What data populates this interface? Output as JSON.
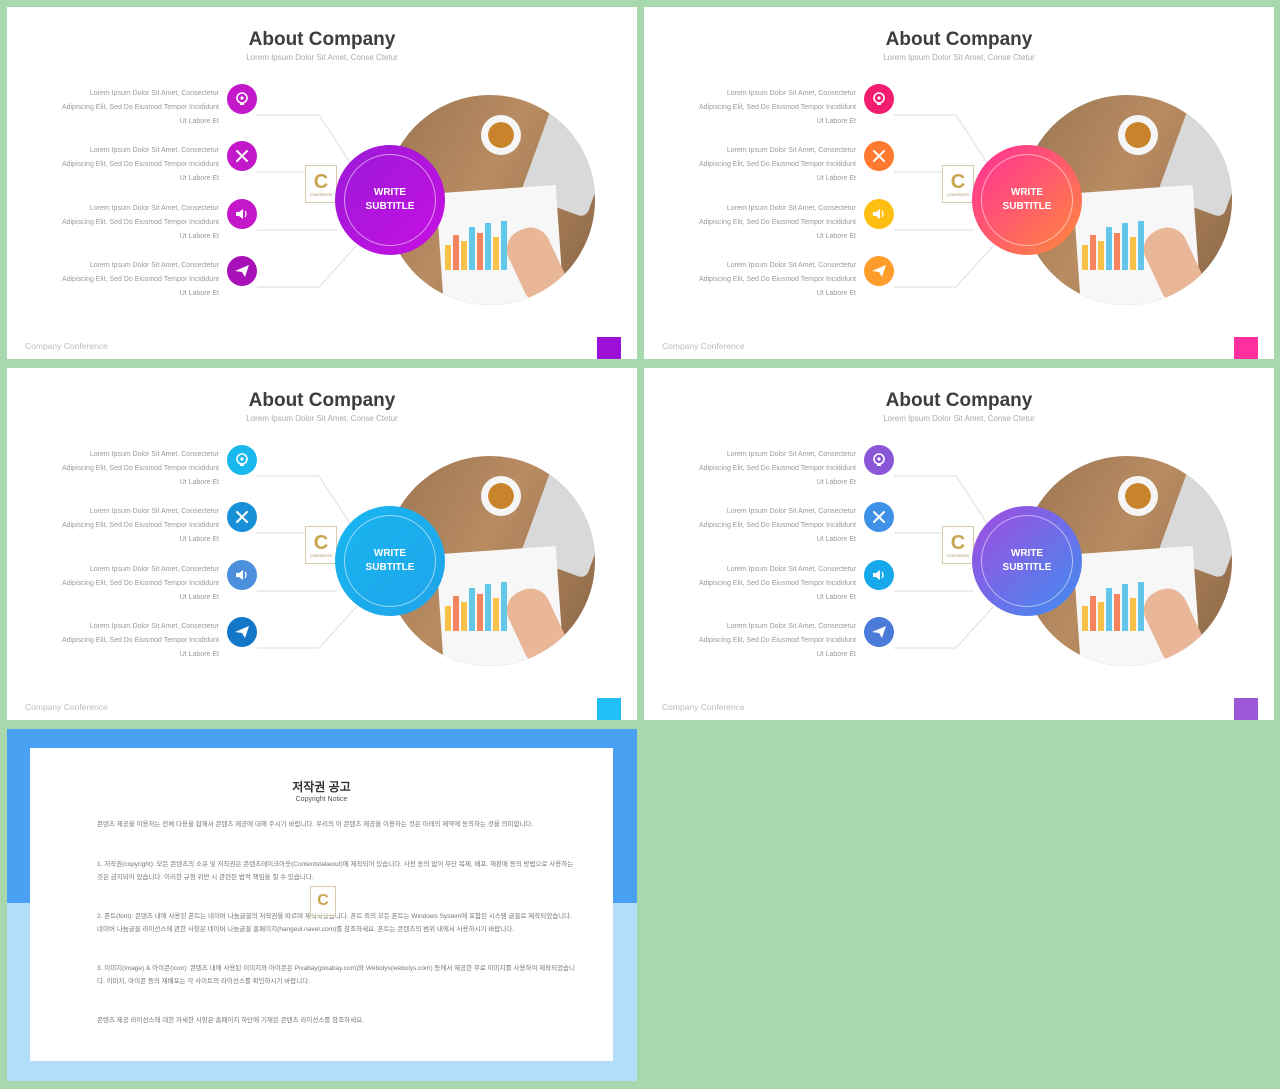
{
  "slides": [
    {
      "title": "About Company",
      "subtitle": "Lorem Ipsum Dolor Sit Amet, Conse Ctetur",
      "footer": "Company Conference",
      "center_label": "WRITE SUBTITLE",
      "center_gradient": [
        "#9b1bd6",
        "#c70fe3"
      ],
      "corner_color": "#9b10d4",
      "icon_colors": [
        "#c218c9",
        "#c218c9",
        "#c218c9",
        "#a911b8"
      ]
    },
    {
      "title": "About Company",
      "subtitle": "Lorem Ipsum Dolor Sit Amet, Conse Ctetur",
      "footer": "Company Conference",
      "center_label": "WRITE SUBTITLE",
      "center_gradient": [
        "#ff2e9a",
        "#ff8a3b"
      ],
      "corner_color": "#ff2fa0",
      "icon_colors": [
        "#f21d6f",
        "#ff7a2f",
        "#ffbf12",
        "#ff9d2a"
      ]
    },
    {
      "title": "About Company",
      "subtitle": "Lorem Ipsum Dolor Sit Amet, Conse Ctetur",
      "footer": "Company Conference",
      "center_label": "WRITE SUBTITLE",
      "center_gradient": [
        "#18b6f0",
        "#1fa4ea"
      ],
      "corner_color": "#1ec0f5",
      "icon_colors": [
        "#19b8ef",
        "#1890d7",
        "#4b8fdd",
        "#1376c6"
      ]
    },
    {
      "title": "About Company",
      "subtitle": "Lorem Ipsum Dolor Sit Amet, Conse Ctetur",
      "footer": "Company Conference",
      "center_label": "WRITE SUBTITLE",
      "center_gradient": [
        "#a14be0",
        "#3f8ef0"
      ],
      "corner_color": "#9b58d8",
      "icon_colors": [
        "#8a56d8",
        "#3f91e7",
        "#16a8ea",
        "#4c7ad8"
      ]
    }
  ],
  "items": [
    {
      "line1": "Lorem Ipsum Dolor Sit Amet, Consectetur",
      "line2": "Adipiscing Elit, Sed Do Eiusmod Tempor Incididunt",
      "line3": "Ut Labore Et",
      "icon": "idea-head-icon"
    },
    {
      "line1": "Lorem Ipsum Dolor Sit Amet, Consectetur",
      "line2": "Adipiscing Elit, Sed Do Eiusmod Tempor Incididunt",
      "line3": "Ut Labore Et",
      "icon": "tools-icon"
    },
    {
      "line1": "Lorem Ipsum Dolor Sit Amet, Consectetur",
      "line2": "Adipiscing Elit, Sed Do Eiusmod Tempor Incididunt",
      "line3": "Ut Labore Et",
      "icon": "speaker-icon"
    },
    {
      "line1": "Lorem Ipsum Dolor Sit Amet, Consectetur",
      "line2": "Adipiscing Elit, Sed Do Eiusmod Tempor Incididunt",
      "line3": "Ut Labore Et",
      "icon": "paper-plane-icon"
    }
  ],
  "logo": {
    "letter": "C",
    "text": "CONTENTS"
  },
  "copyright": {
    "title": "저작권 공고",
    "subtitle": "Copyright Notice",
    "paragraphs": [
      "콘텐츠 제공을 이용하는 전체 다용을 합해서 콘텐츠 제공에 대해 주시기 바랍니다. 우리의 이 콘텐츠 제공을 이용하는 것은 아래의 제약에 동의하는 것을 의미합니다.",
      "1. 저작권(copyright): 모든 콘텐츠의 소유 및 저작권은 콘텐츠테이크아웃(Contentstakeout)에 제작되어 있습니다. 사전 동의 없이 무단 복제, 배포, 재판매 등의 방법으로 사용하는 것은 금지되어 있습니다. 이러한 규정 위반 시 관련된 법적 책임을 질 수 있습니다.",
      "2. 폰트(font): 콘텐츠 내에 사용된 폰트는 네이버 나눔글꼴의 저작권을 따르며 제작되었습니다. 폰트 외의 모든 폰트는 Windows System에 포함된 시스템 글꼴로 제작되었습니다. 네이버 나눔글꼴 라이선스에 관한 사항은 네이버 나눔글꼴 홈페이지(hangeul.naver.com)를 참조하세요. 폰트는 콘텐츠의 범위 내에서 사용하시기 바랍니다.",
      "3. 이미지(image) & 아이콘(icon): 콘텐츠 내에 사용된 이미지와 아이콘은 Pixabay(pixabay.com)와 Webolys(webolys.com) 등에서 제공한 무료 이미지를 사용하여 제작되었습니다. 이미지, 아이콘 등의 재배포는 각 사이트의 라이선스를 확인하시기 바랍니다.",
      "콘텐츠 제공 라이선스에 대한 자세한 사항은 홈페이지 하단에 기재된 콘텐츠 라이선스를 참조하세요."
    ]
  }
}
